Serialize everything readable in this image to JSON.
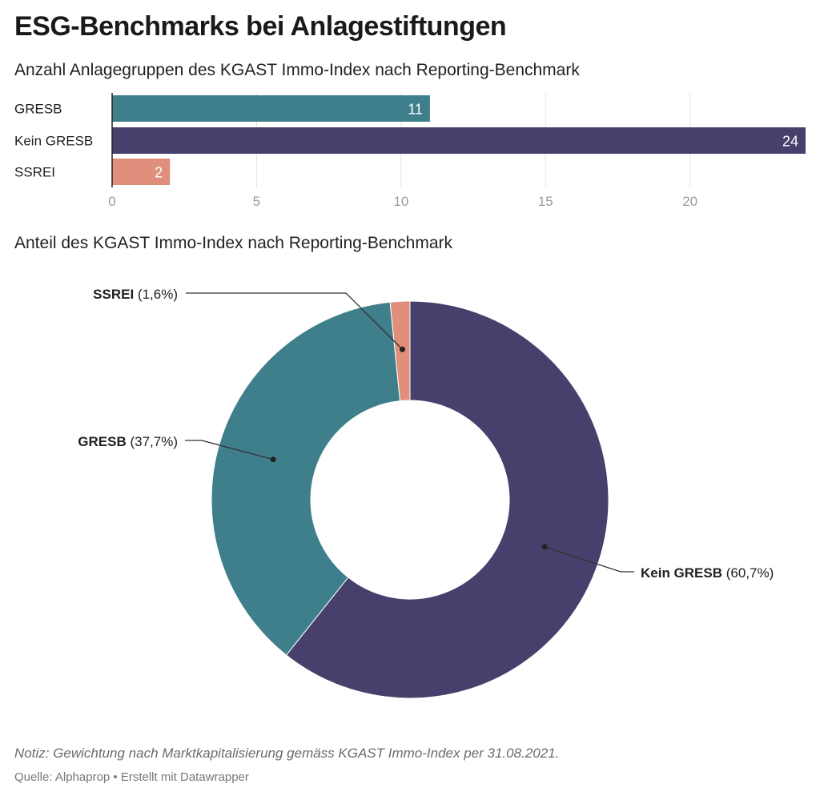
{
  "title": "ESG-Benchmarks bei Anlagestiftungen",
  "bar_subtitle": "Anzahl Anlagegruppen des KGAST Immo-Index nach Reporting-Benchmark",
  "pie_subtitle": "Anteil des KGAST Immo-Index nach Reporting-Benchmark",
  "note": "Notiz: Gewichtung nach Marktkapitalisierung gemäss KGAST Immo-Index per 31.08.2021.",
  "source": "Quelle: Alphaprop • Erstellt mit Datawrapper",
  "colors": {
    "gresb": "#3f7f8c",
    "kein_gresb": "#48406c",
    "ssrei": "#e08f7c",
    "grid": "#e3e3e3",
    "tick_text": "#9a9a9a",
    "leader": "#333333"
  },
  "chart_data": [
    {
      "type": "bar",
      "orientation": "horizontal",
      "title": "Anzahl Anlagegruppen des KGAST Immo-Index nach Reporting-Benchmark",
      "categories": [
        "GRESB",
        "Kein GRESB",
        "SSREI"
      ],
      "values": [
        11,
        24,
        2
      ],
      "value_labels": [
        "11",
        "24",
        "2"
      ],
      "xlim": [
        0,
        24
      ],
      "xticks": [
        0,
        5,
        10,
        15,
        20
      ],
      "xtick_labels": [
        "0",
        "5",
        "10",
        "15",
        "20"
      ],
      "grid": true
    },
    {
      "type": "pie",
      "donut": true,
      "title": "Anteil des KGAST Immo-Index nach Reporting-Benchmark",
      "slices": [
        {
          "label": "Kein GRESB",
          "value": 60.7,
          "value_label": "(60,7%)"
        },
        {
          "label": "GRESB",
          "value": 37.7,
          "value_label": "(37,7%)"
        },
        {
          "label": "SSREI",
          "value": 1.6,
          "value_label": "(1,6%)"
        }
      ]
    }
  ]
}
